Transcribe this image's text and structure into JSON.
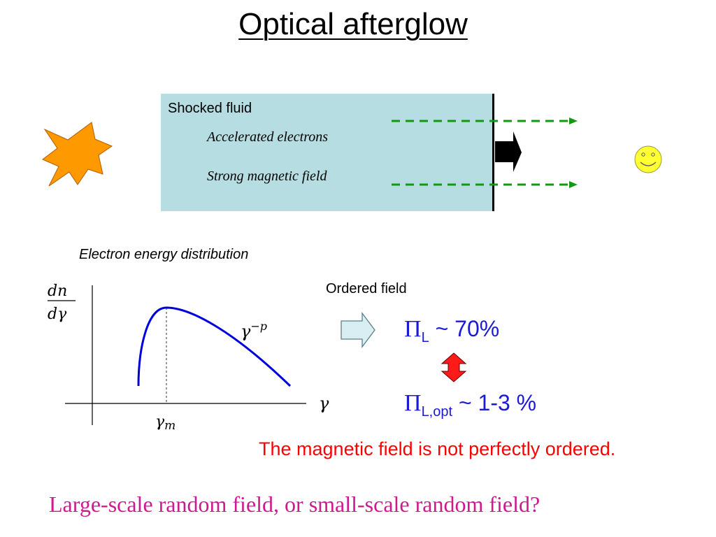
{
  "slide": {
    "title": "Optical afterglow",
    "fluid_box": {
      "label": "Shocked fluid",
      "line1": "Accelerated electrons",
      "line2": "Strong magnetic field"
    },
    "distribution": {
      "title": "Electron energy distribution",
      "y_axis_label_num": "dn",
      "y_axis_label_den": "dγ",
      "x_axis_label": "γ",
      "peak_label_base": "γ",
      "peak_label_sub": "m",
      "slope_label_base": "γ",
      "slope_label_exp": "−p"
    },
    "ordered_field_label": "Ordered field",
    "polarization_ordered": {
      "symbol": "Π",
      "subscript": "L",
      "value": " ~ 70%"
    },
    "polarization_observed": {
      "symbol": "Π",
      "subscript": "L,opt",
      "value": " ~ 1-3 %"
    },
    "note": "The magnetic field is not perfectly ordered.",
    "question": "Large-scale random field, or small-scale random field?"
  },
  "colors": {
    "fluid_fill": "#b6dde2",
    "jet_arrow": "#119911",
    "star": "#ff9900",
    "smiley": "#ffff33",
    "curve": "#0000dd",
    "note_text": "#ff0000",
    "question_text": "#cc1a8f",
    "polarization_text": "#1b1bd6",
    "double_arrow": "#ff0000"
  },
  "icons": [
    "star-burst-icon",
    "smiley-observer-icon",
    "shock-arrow-icon",
    "ordered-field-arrow-icon",
    "double-arrow-icon"
  ]
}
